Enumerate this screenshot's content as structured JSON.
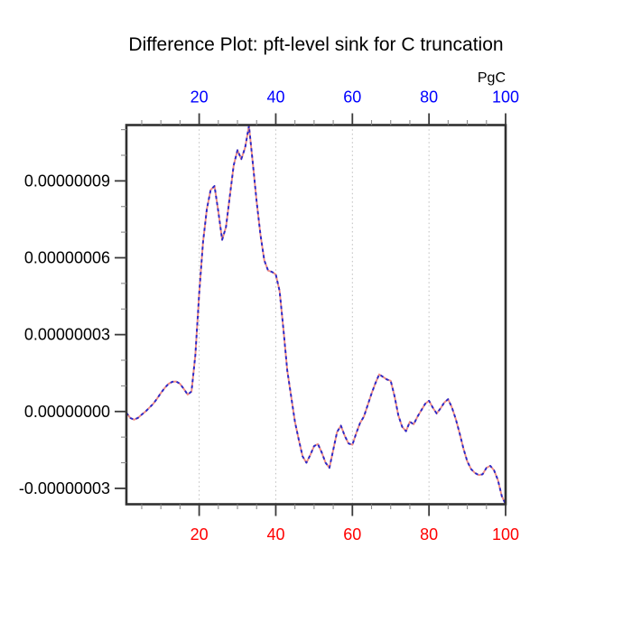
{
  "page": {
    "background": "#ffffff"
  },
  "chart_data": {
    "type": "line",
    "title": "Difference Plot: pft-level sink for C truncation",
    "top_axis_unit_label": "PgC",
    "xlabel": "",
    "ylabel": "",
    "xlim": [
      1,
      100
    ],
    "y_scale_factor": 1e-08,
    "ylim_scaled": [
      -3.62,
      11.18
    ],
    "x_major_ticks": [
      20,
      40,
      60,
      80,
      100
    ],
    "x_major_tick_labels": [
      "20",
      "40",
      "60",
      "80",
      "100"
    ],
    "x_minor_tick_interval": 5,
    "y_major_ticks_scaled": [
      9,
      6,
      3,
      0,
      -3
    ],
    "y_major_tick_labels": [
      "0.00000009",
      "0.00000006",
      "0.00000003",
      "0.00000000",
      "-0.00000003"
    ],
    "y_minor_tick_interval_scaled": 1,
    "grid": {
      "vertical_at": [
        20,
        40,
        60,
        80
      ],
      "style": "dotted",
      "horizontal": false
    },
    "legend": {
      "visible": false
    },
    "colors": {
      "title": "#000000",
      "top_tick_labels": "#0000ff",
      "bottom_tick_labels": "#ff0000",
      "left_tick_labels": "#000000",
      "axis_frame": "#303030",
      "major_tick": "#3a3a3a",
      "minor_tick": "#8a8a8a",
      "grid": "#bdbdbd",
      "series_red": "#ee8b84",
      "series_blue": "#2828cb"
    },
    "series": [
      {
        "name": "difference curve (two coincident dashed lines, red + blue alternating)",
        "line_style": "dashed two-color (red/blue alternating segments)",
        "x": [
          1,
          2,
          3,
          4,
          5,
          6,
          7,
          8,
          9,
          10,
          11,
          12,
          13,
          14,
          15,
          16,
          17,
          18,
          19,
          20,
          21,
          22,
          23,
          24,
          25,
          26,
          27,
          28,
          29,
          30,
          31,
          32,
          33,
          34,
          35,
          36,
          37,
          38,
          39,
          40,
          41,
          42,
          43,
          44,
          45,
          46,
          47,
          48,
          49,
          50,
          51,
          52,
          53,
          54,
          55,
          56,
          57,
          58,
          59,
          60,
          61,
          62,
          63,
          64,
          65,
          66,
          67,
          68,
          69,
          70,
          71,
          72,
          73,
          74,
          75,
          76,
          77,
          78,
          79,
          80,
          81,
          82,
          83,
          84,
          85,
          86,
          87,
          88,
          89,
          90,
          91,
          92,
          93,
          94,
          95,
          96,
          97,
          98,
          99,
          100
        ],
        "y_scaled": [
          -0.05,
          -0.25,
          -0.32,
          -0.25,
          -0.12,
          0.0,
          0.15,
          0.3,
          0.5,
          0.72,
          0.92,
          1.08,
          1.16,
          1.17,
          1.08,
          0.88,
          0.66,
          0.78,
          2.2,
          4.6,
          6.6,
          7.9,
          8.65,
          8.8,
          7.8,
          6.7,
          7.2,
          8.4,
          9.6,
          10.2,
          9.85,
          10.3,
          11.15,
          9.7,
          8.2,
          6.9,
          5.9,
          5.5,
          5.45,
          5.35,
          4.7,
          3.2,
          1.6,
          0.6,
          -0.4,
          -1.1,
          -1.75,
          -2.0,
          -1.7,
          -1.35,
          -1.27,
          -1.6,
          -2.0,
          -2.2,
          -1.5,
          -0.8,
          -0.55,
          -0.95,
          -1.25,
          -1.3,
          -0.85,
          -0.45,
          -0.2,
          0.25,
          0.7,
          1.1,
          1.45,
          1.35,
          1.25,
          1.2,
          0.6,
          -0.15,
          -0.6,
          -0.77,
          -0.4,
          -0.5,
          -0.2,
          0.05,
          0.3,
          0.42,
          0.15,
          -0.08,
          0.12,
          0.35,
          0.48,
          0.15,
          -0.3,
          -0.85,
          -1.45,
          -1.95,
          -2.25,
          -2.4,
          -2.48,
          -2.45,
          -2.2,
          -2.12,
          -2.3,
          -2.68,
          -3.3,
          -3.62
        ]
      }
    ]
  }
}
